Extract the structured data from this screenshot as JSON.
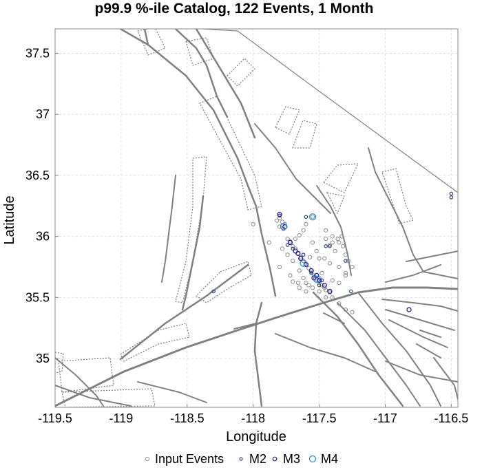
{
  "chart_data": {
    "type": "scatter",
    "title": "p99.9 %-ile Catalog, 122 Events, 1 Month",
    "xlabel": "Longitude",
    "ylabel": "Latitude",
    "xlim": [
      -119.5,
      -116.45
    ],
    "ylim": [
      34.6,
      37.7
    ],
    "xticks": [
      -119.5,
      -119,
      -118.5,
      -118,
      -117.5,
      -117,
      -116.5
    ],
    "xtick_labels": [
      "-119.5",
      "-119",
      "-118.5",
      "-118",
      "-117.5",
      "-117",
      "-116.5"
    ],
    "yticks": [
      35,
      35.5,
      36,
      36.5,
      37,
      37.5
    ],
    "ytick_labels": [
      "35",
      "35.5",
      "36",
      "36.5",
      "37",
      "37.5"
    ],
    "grid": true,
    "legend": [
      "Input Events",
      "M2",
      "M3",
      "M4"
    ],
    "legend_position": "bottom",
    "colors": {
      "input": "#8a8a8a",
      "m2": "#2a4a7a",
      "m3": "#2a1a9a",
      "m4": "#1e88e5",
      "fault": "#808080"
    },
    "series": [
      {
        "name": "Input Events",
        "points": [
          [
            -117.8,
            36.15
          ],
          [
            -117.78,
            36.12
          ],
          [
            -117.8,
            36.08
          ],
          [
            -117.76,
            36.1
          ],
          [
            -117.82,
            36.13
          ],
          [
            -117.77,
            36.06
          ],
          [
            -117.72,
            35.96
          ],
          [
            -117.7,
            35.92
          ],
          [
            -117.68,
            35.9
          ],
          [
            -117.66,
            35.86
          ],
          [
            -117.64,
            35.83
          ],
          [
            -117.62,
            35.8
          ],
          [
            -117.6,
            35.77
          ],
          [
            -117.58,
            35.74
          ],
          [
            -117.56,
            35.71
          ],
          [
            -117.54,
            35.68
          ],
          [
            -117.52,
            35.65
          ],
          [
            -117.5,
            35.62
          ],
          [
            -117.48,
            35.6
          ],
          [
            -117.46,
            35.58
          ],
          [
            -117.45,
            35.56
          ],
          [
            -117.65,
            35.72
          ],
          [
            -117.62,
            35.66
          ],
          [
            -117.6,
            35.62
          ],
          [
            -117.58,
            35.6
          ],
          [
            -117.55,
            35.58
          ],
          [
            -117.5,
            35.55
          ],
          [
            -117.42,
            35.54
          ],
          [
            -117.55,
            35.95
          ],
          [
            -117.45,
            35.98
          ],
          [
            -117.4,
            35.95
          ],
          [
            -117.35,
            35.95
          ],
          [
            -117.32,
            35.92
          ],
          [
            -117.38,
            35.88
          ],
          [
            -117.3,
            35.85
          ],
          [
            -117.28,
            35.8
          ],
          [
            -117.35,
            35.75
          ],
          [
            -117.42,
            35.78
          ],
          [
            -117.5,
            35.82
          ],
          [
            -117.25,
            35.75
          ],
          [
            -117.3,
            35.68
          ],
          [
            -117.35,
            35.62
          ],
          [
            -117.4,
            35.64
          ],
          [
            -117.48,
            35.7
          ],
          [
            -117.7,
            35.8
          ],
          [
            -117.74,
            35.85
          ],
          [
            -117.78,
            35.9
          ],
          [
            -117.74,
            35.98
          ],
          [
            -117.68,
            35.98
          ],
          [
            -117.62,
            36.05
          ],
          [
            -117.6,
            36.1
          ],
          [
            -117.52,
            35.88
          ],
          [
            -117.46,
            35.82
          ],
          [
            -117.66,
            35.62
          ],
          [
            -117.72,
            35.68
          ],
          [
            -117.35,
            35.45
          ],
          [
            -117.3,
            35.4
          ],
          [
            -117.25,
            35.38
          ],
          [
            -117.4,
            35.5
          ],
          [
            -117.45,
            35.5
          ],
          [
            -118.0,
            36.1
          ],
          [
            -117.88,
            35.95
          ],
          [
            -117.3,
            35.7
          ],
          [
            -117.45,
            36.05
          ],
          [
            -117.4,
            36.0
          ],
          [
            -117.65,
            36.01
          ],
          [
            -117.55,
            36.16
          ],
          [
            -117.36,
            35.98
          ],
          [
            -117.33,
            36.0
          ],
          [
            -117.42,
            35.93
          ],
          [
            -117.6,
            35.55
          ],
          [
            -117.7,
            35.63
          ],
          [
            -117.65,
            35.58
          ],
          [
            -117.5,
            35.66
          ],
          [
            -117.57,
            35.83
          ],
          [
            -117.8,
            35.75
          ]
        ]
      },
      {
        "name": "M2",
        "points": [
          [
            -117.8,
            36.17
          ],
          [
            -117.74,
            35.93
          ],
          [
            -117.62,
            35.85
          ],
          [
            -117.5,
            35.6
          ],
          [
            -117.45,
            35.92
          ],
          [
            -117.42,
            35.92
          ],
          [
            -117.3,
            35.8
          ],
          [
            -117.26,
            35.55
          ],
          [
            -118.3,
            35.55
          ],
          [
            -116.5,
            36.35
          ],
          [
            -116.5,
            36.32
          ],
          [
            -117.7,
            35.9
          ],
          [
            -117.56,
            35.7
          ],
          [
            -117.48,
            35.64
          ],
          [
            -117.6,
            36.16
          ]
        ]
      },
      {
        "name": "M3",
        "points": [
          [
            -117.8,
            36.18
          ],
          [
            -117.76,
            36.08
          ],
          [
            -117.72,
            35.95
          ],
          [
            -117.68,
            35.88
          ],
          [
            -117.64,
            35.82
          ],
          [
            -117.6,
            35.77
          ],
          [
            -117.56,
            35.72
          ],
          [
            -117.54,
            35.66
          ],
          [
            -117.5,
            35.64
          ],
          [
            -117.46,
            35.6
          ],
          [
            -117.42,
            35.55
          ],
          [
            -117.66,
            35.86
          ],
          [
            -117.52,
            35.68
          ],
          [
            -116.82,
            35.4
          ]
        ]
      },
      {
        "name": "M4",
        "points": [
          [
            -117.77,
            36.08
          ],
          [
            -117.55,
            36.16
          ],
          [
            -117.52,
            35.65
          ],
          [
            -117.62,
            35.78
          ]
        ]
      }
    ]
  }
}
